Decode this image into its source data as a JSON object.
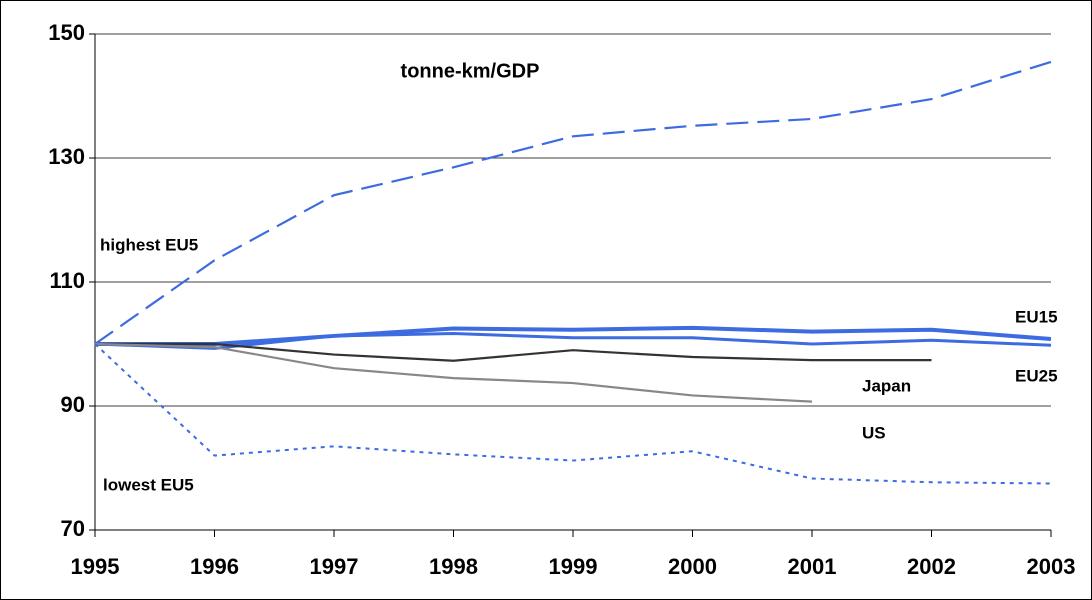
{
  "chart_data": {
    "type": "line",
    "title": "tonne-km/GDP",
    "x": [
      1995,
      1996,
      1997,
      1998,
      1999,
      2000,
      2001,
      2002,
      2003
    ],
    "xlim": [
      1995,
      2003
    ],
    "xticks": [
      1995,
      1996,
      1997,
      1998,
      1999,
      2000,
      2001,
      2002,
      2003
    ],
    "ylim": [
      70,
      150
    ],
    "yticks": [
      70,
      90,
      110,
      130,
      150
    ],
    "grid": true,
    "series": [
      {
        "name": "highest EU5",
        "color": "#3d6be0",
        "style": "dashed",
        "values": [
          100,
          113.5,
          124,
          128.5,
          133.5,
          135.2,
          136.3,
          139.5,
          145.5
        ]
      },
      {
        "name": "EU15",
        "color": "#3d6be0",
        "style": "solid",
        "values": [
          100,
          100,
          101.3,
          102.5,
          102.3,
          102.6,
          102.0,
          102.3,
          100.8
        ]
      },
      {
        "name": "EU25",
        "color": "#3d6be0",
        "style": "solid",
        "values": [
          100,
          99.3,
          101.3,
          101.7,
          101.0,
          101.0,
          100.0,
          100.6,
          99.8
        ]
      },
      {
        "name": "Japan",
        "color": "#333333",
        "style": "solid",
        "values": [
          100,
          100,
          98.3,
          97.3,
          99.0,
          97.9,
          97.4,
          97.4,
          null
        ]
      },
      {
        "name": "US",
        "color": "#888888",
        "style": "solid",
        "values": [
          100,
          99.5,
          96.1,
          94.5,
          93.7,
          91.7,
          90.7,
          null,
          null
        ]
      },
      {
        "name": "lowest EU5",
        "color": "#3d6be0",
        "style": "dotted",
        "values": [
          100,
          82,
          83.5,
          82.2,
          81.2,
          82.7,
          78.3,
          77.7,
          77.5
        ]
      }
    ]
  }
}
